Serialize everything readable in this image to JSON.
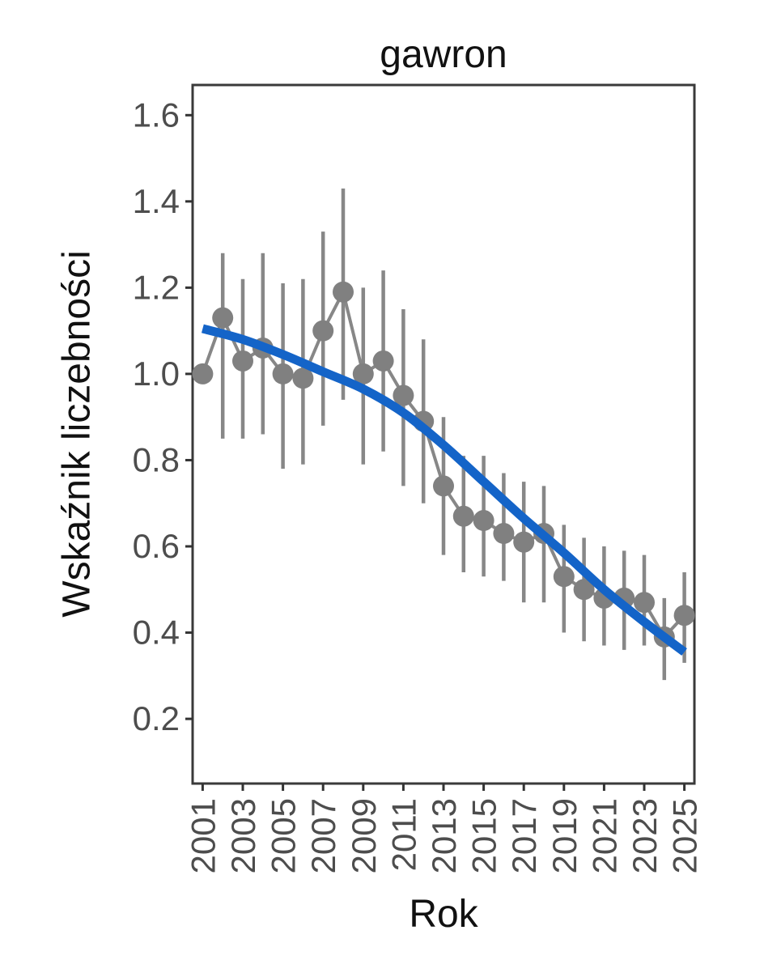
{
  "title": "gawron",
  "colors": {
    "point": "#808080",
    "error_bar": "#878787",
    "connector_line": "#878787",
    "trend_line": "#1464c8",
    "axis_text": "#4d4d4d",
    "title_text": "#111111",
    "panel_border": "#3a3a3a",
    "tick": "#333333",
    "background": "#ffffff"
  },
  "chart_data": {
    "type": "line",
    "title": "gawron",
    "xlabel": "Rok",
    "ylabel": "Wskaźnik liczebności",
    "x": [
      2001,
      2002,
      2003,
      2004,
      2005,
      2006,
      2007,
      2008,
      2009,
      2010,
      2011,
      2012,
      2013,
      2014,
      2015,
      2016,
      2017,
      2018,
      2019,
      2020,
      2021,
      2022,
      2023,
      2024,
      2025
    ],
    "series": [
      {
        "name": "wskaźnik liczebności",
        "type": "points+errorbars",
        "values": [
          1.0,
          1.13,
          1.03,
          1.06,
          1.0,
          0.99,
          1.1,
          1.19,
          1.0,
          1.03,
          0.95,
          0.89,
          0.74,
          0.67,
          0.66,
          0.63,
          0.61,
          0.63,
          0.53,
          0.5,
          0.48,
          0.48,
          0.47,
          0.39,
          0.44
        ],
        "lower": [
          1.0,
          0.85,
          0.85,
          0.86,
          0.78,
          0.79,
          0.88,
          0.94,
          0.79,
          0.82,
          0.74,
          0.7,
          0.58,
          0.54,
          0.53,
          0.52,
          0.47,
          0.47,
          0.4,
          0.38,
          0.37,
          0.36,
          0.37,
          0.29,
          0.33
        ],
        "upper": [
          1.0,
          1.28,
          1.22,
          1.28,
          1.21,
          1.22,
          1.33,
          1.43,
          1.2,
          1.24,
          1.15,
          1.08,
          0.9,
          0.81,
          0.81,
          0.77,
          0.75,
          0.74,
          0.65,
          0.62,
          0.6,
          0.59,
          0.58,
          0.48,
          0.54
        ]
      },
      {
        "name": "trend",
        "type": "smooth-line",
        "x": [
          2001,
          2003,
          2005,
          2007,
          2009,
          2011,
          2013,
          2015,
          2017,
          2019,
          2021,
          2023,
          2025
        ],
        "values": [
          1.105,
          1.08,
          1.045,
          1.005,
          0.965,
          0.91,
          0.835,
          0.75,
          0.665,
          0.585,
          0.5,
          0.425,
          0.355
        ]
      }
    ],
    "x_ticks": [
      2001,
      2003,
      2005,
      2007,
      2009,
      2011,
      2013,
      2015,
      2017,
      2019,
      2021,
      2023,
      2025
    ],
    "x_tick_labels": [
      "2001",
      "2003",
      "2005",
      "2007",
      "2009",
      "2011",
      "2013",
      "2015",
      "2017",
      "2019",
      "2021",
      "2023",
      "2025"
    ],
    "y_ticks": [
      0.2,
      0.4,
      0.6,
      0.8,
      1.0,
      1.2,
      1.4,
      1.6
    ],
    "y_tick_labels": [
      "0.2",
      "0.4",
      "0.6",
      "0.8",
      "1.0",
      "1.2",
      "1.4",
      "1.6"
    ],
    "xlim": [
      2000.5,
      2025.5
    ],
    "ylim": [
      0.05,
      1.67
    ],
    "grid": false,
    "legend": "none",
    "x_tick_rotation": -90
  }
}
